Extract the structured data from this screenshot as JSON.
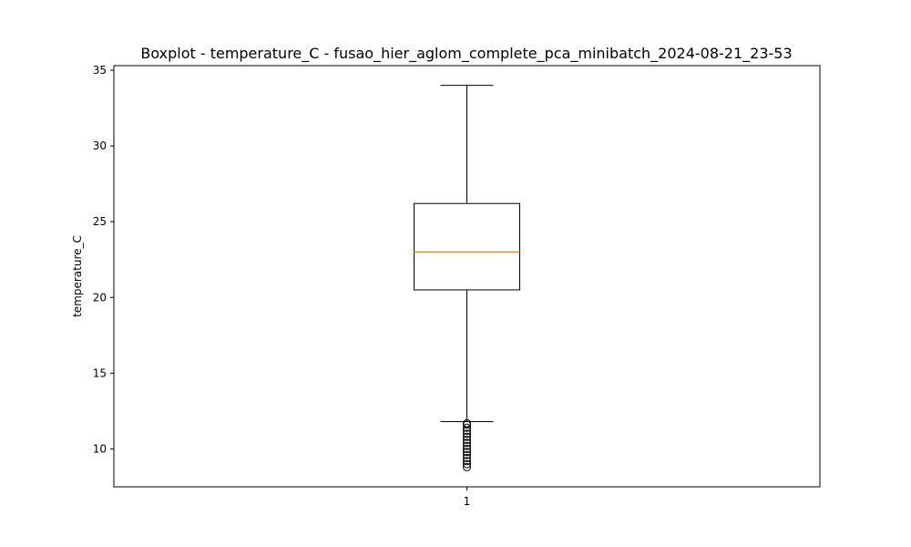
{
  "chart_data": {
    "type": "boxplot",
    "title": "Boxplot - temperature_C - fusao_hier_aglom_complete_pca_minibatch_2024-08-21_23-53",
    "xlabel": "",
    "ylabel": "temperature_C",
    "ylim": [
      7.5,
      35.3
    ],
    "yticks": [
      10,
      15,
      20,
      25,
      30,
      35
    ],
    "ytick_labels": [
      "10",
      "15",
      "20",
      "25",
      "30",
      "35"
    ],
    "categories": [
      "1"
    ],
    "boxes": [
      {
        "category": "1",
        "whisker_low": 11.8,
        "q1": 20.5,
        "median": 23.0,
        "q3": 26.2,
        "whisker_high": 34.0,
        "outliers": [
          8.8,
          9.0,
          9.2,
          9.4,
          9.6,
          9.8,
          10.0,
          10.2,
          10.4,
          10.6,
          10.8,
          11.0,
          11.2,
          11.4,
          11.6,
          11.7
        ]
      }
    ],
    "colors": {
      "box": "#000000",
      "median": "#ff7f0e",
      "whisker": "#000000",
      "outlier": "#000000"
    },
    "grid": false
  }
}
